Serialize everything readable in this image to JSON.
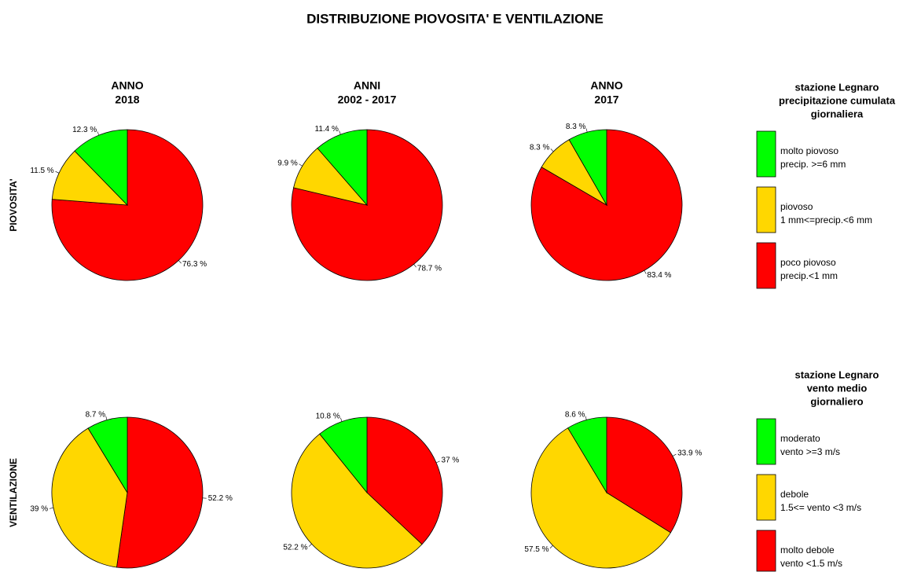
{
  "title": "DISTRIBUZIONE PIOVOSITA' E VENTILAZIONE",
  "rows": [
    {
      "label": "PIOVOSITA'",
      "legend": {
        "title_lines": [
          "stazione  Legnaro",
          "precipitazione cumulata",
          "giornaliera"
        ],
        "entries": [
          {
            "lines": [
              "molto piovoso",
              "precip. >=6 mm"
            ],
            "color": "#00ff00"
          },
          {
            "lines": [
              "piovoso",
              "1 mm<=precip.<6 mm"
            ],
            "color": "#ffd700"
          },
          {
            "lines": [
              "poco piovoso",
              "precip.<1 mm"
            ],
            "color": "#ff0000"
          }
        ]
      }
    },
    {
      "label": "VENTILAZIONE",
      "legend": {
        "title_lines": [
          "stazione  Legnaro",
          "vento medio",
          "giornaliero"
        ],
        "entries": [
          {
            "lines": [
              "moderato",
              "vento >=3 m/s"
            ],
            "color": "#00ff00"
          },
          {
            "lines": [
              "debole",
              "1.5<= vento <3 m/s"
            ],
            "color": "#ffd700"
          },
          {
            "lines": [
              "molto debole",
              "vento <1.5 m/s"
            ],
            "color": "#ff0000"
          }
        ]
      }
    }
  ],
  "chart_data": [
    {
      "type": "pie",
      "title_lines": [
        "ANNO",
        "2018"
      ],
      "values": [
        12.3,
        11.5,
        76.3
      ],
      "value_labels": [
        "12.3 %",
        "11.5 %",
        "76.3 %"
      ],
      "colors": [
        "#00ff00",
        "#ffd700",
        "#ff0000"
      ]
    },
    {
      "type": "pie",
      "title_lines": [
        "ANNI",
        "2002 - 2017"
      ],
      "values": [
        11.4,
        9.9,
        78.7
      ],
      "value_labels": [
        "11.4 %",
        "9.9 %",
        "78.7 %"
      ],
      "colors": [
        "#00ff00",
        "#ffd700",
        "#ff0000"
      ]
    },
    {
      "type": "pie",
      "title_lines": [
        "ANNO",
        "2017"
      ],
      "values": [
        8.3,
        8.3,
        83.4
      ],
      "value_labels": [
        "8.3 %",
        "8.3 %",
        "83.4 %"
      ],
      "colors": [
        "#00ff00",
        "#ffd700",
        "#ff0000"
      ]
    },
    {
      "type": "pie",
      "values": [
        8.7,
        39,
        52.2
      ],
      "value_labels": [
        "8.7 %",
        "39 %",
        "52.2 %"
      ],
      "colors": [
        "#00ff00",
        "#ffd700",
        "#ff0000"
      ]
    },
    {
      "type": "pie",
      "values": [
        10.8,
        52.2,
        37
      ],
      "value_labels": [
        "10.8 %",
        "52.2 %",
        "37 %"
      ],
      "colors": [
        "#00ff00",
        "#ffd700",
        "#ff0000"
      ]
    },
    {
      "type": "pie",
      "values": [
        8.6,
        57.5,
        33.9
      ],
      "value_labels": [
        "8.6 %",
        "57.5 %",
        "33.9 %"
      ],
      "colors": [
        "#00ff00",
        "#ffd700",
        "#ff0000"
      ]
    }
  ]
}
